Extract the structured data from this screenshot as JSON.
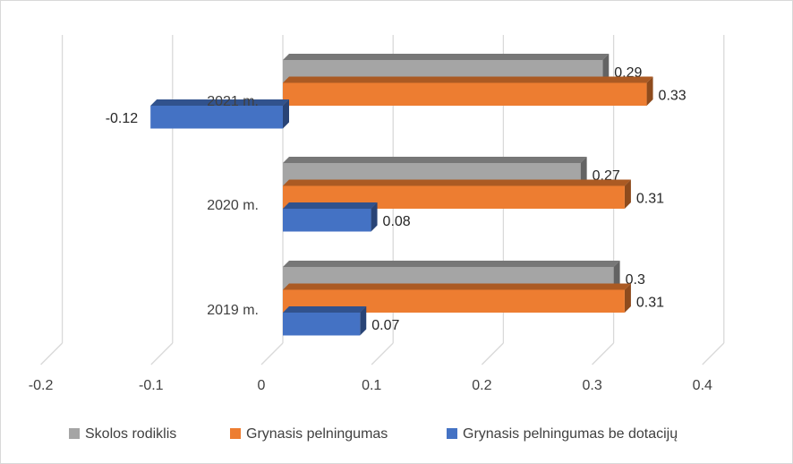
{
  "chart_data": {
    "type": "bar",
    "orientation": "horizontal",
    "style": "3d-clustered",
    "categories": [
      "2019 m.",
      "2020 m.",
      "2021 m."
    ],
    "series": [
      {
        "name": "Grynasis pelningumas be dotacijų",
        "values": [
          0.07,
          0.08,
          -0.12
        ],
        "labels": [
          "0.07",
          "0.08",
          "-0.12"
        ],
        "color": "#4472c4"
      },
      {
        "name": "Grynasis pelningumas",
        "values": [
          0.31,
          0.31,
          0.33
        ],
        "labels": [
          "0.31",
          "0.31",
          "0.33"
        ],
        "color": "#ed7d31"
      },
      {
        "name": "Skolos rodiklis",
        "values": [
          0.3,
          0.27,
          0.29
        ],
        "labels": [
          "0.3",
          "0.27",
          "0.29"
        ],
        "color": "#a5a5a5"
      }
    ],
    "xlim": [
      -0.2,
      0.4
    ],
    "x_ticks": [
      "-0.2",
      "-0.1",
      "0",
      "0.1",
      "0.2",
      "0.3",
      "0.4"
    ],
    "gridlines": true,
    "legend": {
      "position": "bottom",
      "order": [
        "Skolos rodiklis",
        "Grynasis pelningumas",
        "Grynasis pelningumas be dotacijų"
      ]
    }
  }
}
